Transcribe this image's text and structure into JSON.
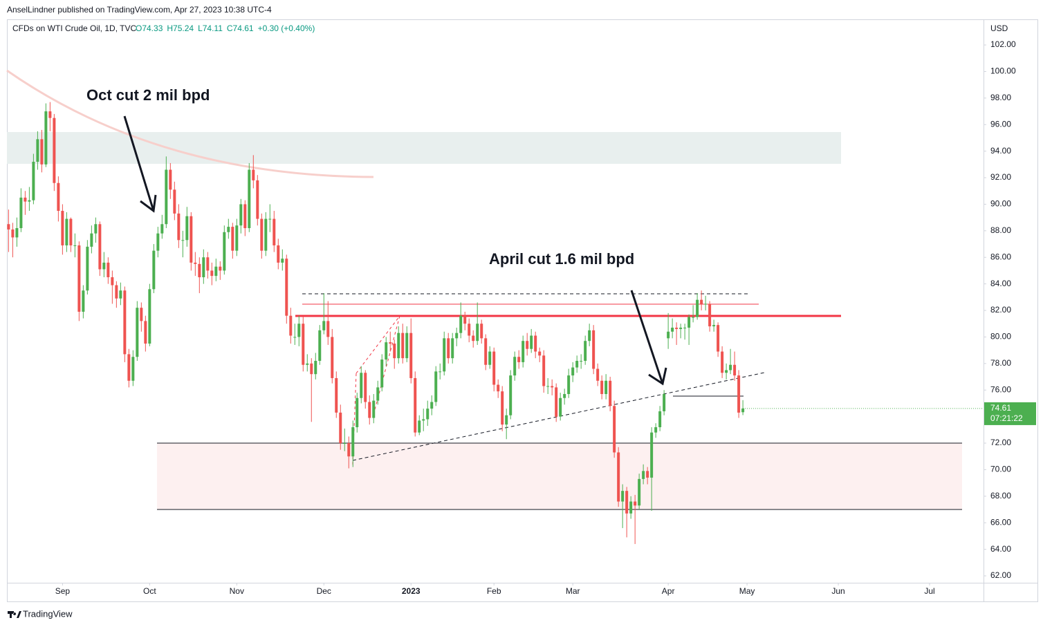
{
  "header": "AnselLindner published on TradingView.com, Apr 27, 2023 10:38 UTC-4",
  "footer": "TradingView",
  "chart_data": {
    "type": "candlestick",
    "title": "CFDs on WTI Crude Oil, 1D, TVC",
    "legend_values": [
      "O74.33",
      "H75.24",
      "L74.11",
      "C74.61",
      "+0.30 (+0.40%)"
    ],
    "annotations": [
      "Oct cut 2 mil bpd",
      "April cut 1.6 mil bpd"
    ],
    "y_axis_label": "USD",
    "last_price": {
      "value": 74.61,
      "label": "74.61"
    },
    "countdown": "07:21:22",
    "up_color": "#4caf50",
    "down_color": "#ef5350",
    "xlim": [
      -0.4,
      235
    ],
    "xticks": [
      {
        "value": 13,
        "label": "Sep"
      },
      {
        "value": 34,
        "label": "Oct"
      },
      {
        "value": 55,
        "label": "Nov"
      },
      {
        "value": 76,
        "label": "Dec"
      },
      {
        "value": 97,
        "label": "2023"
      },
      {
        "value": 117,
        "label": "Feb"
      },
      {
        "value": 136,
        "label": "Mar"
      },
      {
        "value": 159,
        "label": "Apr"
      },
      {
        "value": 178,
        "label": "May"
      },
      {
        "value": 200,
        "label": "Jun"
      },
      {
        "value": 222,
        "label": "Jul"
      }
    ],
    "ylim": [
      61.48,
      103.93
    ],
    "yticks": [
      {
        "value": 62,
        "label": "62.00"
      },
      {
        "value": 64,
        "label": "64.00"
      },
      {
        "value": 66,
        "label": "66.00"
      },
      {
        "value": 68,
        "label": "68.00"
      },
      {
        "value": 70,
        "label": "70.00"
      },
      {
        "value": 72,
        "label": "72.00"
      },
      {
        "value": 74,
        "label": "74.00"
      },
      {
        "value": 76,
        "label": "76.00"
      },
      {
        "value": 78,
        "label": "78.00"
      },
      {
        "value": 80,
        "label": "80.00"
      },
      {
        "value": 82,
        "label": "82.00"
      },
      {
        "value": 84,
        "label": "84.00"
      },
      {
        "value": 86,
        "label": "86.00"
      },
      {
        "value": 88,
        "label": "88.00"
      },
      {
        "value": 90,
        "label": "90.00"
      },
      {
        "value": 92,
        "label": "92.00"
      },
      {
        "value": 94,
        "label": "94.00"
      },
      {
        "value": 96,
        "label": "96.00"
      },
      {
        "value": 98,
        "label": "98.00"
      },
      {
        "value": 100,
        "label": "100.00"
      },
      {
        "value": 102,
        "label": "102.00"
      }
    ],
    "grid": false,
    "ohlc": [
      [
        88.5,
        89.6,
        86.4,
        88.1
      ],
      [
        88.1,
        88.6,
        86.0,
        87.5
      ],
      [
        87.5,
        89.0,
        86.8,
        88.2
      ],
      [
        88.2,
        91.2,
        87.9,
        90.5
      ],
      [
        90.5,
        91.0,
        89.2,
        90.2
      ],
      [
        90.2,
        91.3,
        89.5,
        90.3
      ],
      [
        90.3,
        93.8,
        90.0,
        93.2
      ],
      [
        93.2,
        95.5,
        92.6,
        94.9
      ],
      [
        94.9,
        95.6,
        92.4,
        93.0
      ],
      [
        93.0,
        97.6,
        92.8,
        97.0
      ],
      [
        97.0,
        97.7,
        95.5,
        96.5
      ],
      [
        96.5,
        96.8,
        91.0,
        91.6
      ],
      [
        91.6,
        92.1,
        88.7,
        89.5
      ],
      [
        89.5,
        90.0,
        86.2,
        86.9
      ],
      [
        86.9,
        89.4,
        86.4,
        88.9
      ],
      [
        88.9,
        89.0,
        86.4,
        86.9
      ],
      [
        86.9,
        87.8,
        86.0,
        86.9
      ],
      [
        86.9,
        87.2,
        81.2,
        81.9
      ],
      [
        81.9,
        83.9,
        81.4,
        83.5
      ],
      [
        83.5,
        87.3,
        83.2,
        86.8
      ],
      [
        86.8,
        88.4,
        86.3,
        87.8
      ],
      [
        87.8,
        89.0,
        87.1,
        88.5
      ],
      [
        88.5,
        88.7,
        84.6,
        85.1
      ],
      [
        85.1,
        86.4,
        84.5,
        85.6
      ],
      [
        85.6,
        86.0,
        84.0,
        84.5
      ],
      [
        84.5,
        85.0,
        82.5,
        83.9
      ],
      [
        83.9,
        84.2,
        82.2,
        82.9
      ],
      [
        82.9,
        84.1,
        82.4,
        83.5
      ],
      [
        83.5,
        83.8,
        78.1,
        78.7
      ],
      [
        78.7,
        79.1,
        76.2,
        76.7
      ],
      [
        76.7,
        79.0,
        76.3,
        78.5
      ],
      [
        78.5,
        82.7,
        78.2,
        82.2
      ],
      [
        82.2,
        82.6,
        80.4,
        81.2
      ],
      [
        81.2,
        81.6,
        78.9,
        79.5
      ],
      [
        79.5,
        84.0,
        79.3,
        83.6
      ],
      [
        83.6,
        87.0,
        83.3,
        86.5
      ],
      [
        86.5,
        88.3,
        86.0,
        87.8
      ],
      [
        87.8,
        89.2,
        87.4,
        88.5
      ],
      [
        88.5,
        93.6,
        88.2,
        92.6
      ],
      [
        92.6,
        93.1,
        90.4,
        91.1
      ],
      [
        91.1,
        91.7,
        88.8,
        89.3
      ],
      [
        89.3,
        90.0,
        86.7,
        87.3
      ],
      [
        87.3,
        88.0,
        86.0,
        87.3
      ],
      [
        87.3,
        89.8,
        86.8,
        89.1
      ],
      [
        89.1,
        89.4,
        85.0,
        85.6
      ],
      [
        85.6,
        86.4,
        84.6,
        85.5
      ],
      [
        85.5,
        86.0,
        83.3,
        84.5
      ],
      [
        84.5,
        86.6,
        84.0,
        86.0
      ],
      [
        86.0,
        86.4,
        84.4,
        85.0
      ],
      [
        85.0,
        85.6,
        83.9,
        84.6
      ],
      [
        84.6,
        85.9,
        84.2,
        85.3
      ],
      [
        85.3,
        85.7,
        84.3,
        85.0
      ],
      [
        85.0,
        88.4,
        84.7,
        87.9
      ],
      [
        87.9,
        88.9,
        87.4,
        88.3
      ],
      [
        88.3,
        88.6,
        85.9,
        86.5
      ],
      [
        86.5,
        88.9,
        86.1,
        88.4
      ],
      [
        88.4,
        90.4,
        87.8,
        90.0
      ],
      [
        90.0,
        90.3,
        87.6,
        88.2
      ],
      [
        88.2,
        93.1,
        87.9,
        92.6
      ],
      [
        92.6,
        93.7,
        91.2,
        91.8
      ],
      [
        91.8,
        92.2,
        88.4,
        88.9
      ],
      [
        88.9,
        89.3,
        85.9,
        86.5
      ],
      [
        86.5,
        89.4,
        86.1,
        88.9
      ],
      [
        88.9,
        90.0,
        87.9,
        88.9
      ],
      [
        88.9,
        89.5,
        86.4,
        86.9
      ],
      [
        86.9,
        87.4,
        85.1,
        85.6
      ],
      [
        85.6,
        86.6,
        85.0,
        85.9
      ],
      [
        85.9,
        86.2,
        81.0,
        81.6
      ],
      [
        81.6,
        82.2,
        79.5,
        80.1
      ],
      [
        80.0,
        81.0,
        79.4,
        80.0
      ],
      [
        80.0,
        81.6,
        79.3,
        81.0
      ],
      [
        81.0,
        81.5,
        77.4,
        77.9
      ],
      [
        77.9,
        78.7,
        77.4,
        78.0
      ],
      [
        78.0,
        78.4,
        73.6,
        77.2
      ],
      [
        77.2,
        78.8,
        76.8,
        78.2
      ],
      [
        78.2,
        80.9,
        77.9,
        80.5
      ],
      [
        80.5,
        83.3,
        80.2,
        81.2
      ],
      [
        81.2,
        82.7,
        79.4,
        80.0
      ],
      [
        80.0,
        80.6,
        76.5,
        76.9
      ],
      [
        76.9,
        77.4,
        73.9,
        74.3
      ],
      [
        74.3,
        74.9,
        71.5,
        72.0
      ],
      [
        72.0,
        73.1,
        71.4,
        72.0
      ],
      [
        72.0,
        72.5,
        70.1,
        71.0
      ],
      [
        71.0,
        73.7,
        70.2,
        73.2
      ],
      [
        73.2,
        75.8,
        72.8,
        75.4
      ],
      [
        75.4,
        77.8,
        75.0,
        77.3
      ],
      [
        77.3,
        77.5,
        74.6,
        75.1
      ],
      [
        75.1,
        75.6,
        73.4,
        73.9
      ],
      [
        73.9,
        75.7,
        73.5,
        75.2
      ],
      [
        75.2,
        76.7,
        74.9,
        76.2
      ],
      [
        76.2,
        78.7,
        75.9,
        78.3
      ],
      [
        78.3,
        80.0,
        77.8,
        79.6
      ],
      [
        79.6,
        80.4,
        78.9,
        79.5
      ],
      [
        79.5,
        79.8,
        77.6,
        78.4
      ],
      [
        78.4,
        80.8,
        78.0,
        80.3
      ],
      [
        80.3,
        81.0,
        78.0,
        78.4
      ],
      [
        78.4,
        80.8,
        78.1,
        80.3
      ],
      [
        80.3,
        81.4,
        76.5,
        76.9
      ],
      [
        76.9,
        77.4,
        72.5,
        72.8
      ],
      [
        72.8,
        74.1,
        72.6,
        73.7
      ],
      [
        73.7,
        74.6,
        72.9,
        73.8
      ],
      [
        73.8,
        75.2,
        73.3,
        74.6
      ],
      [
        74.6,
        75.6,
        74.1,
        75.1
      ],
      [
        75.1,
        77.8,
        74.8,
        77.4
      ],
      [
        77.4,
        78.0,
        76.8,
        77.4
      ],
      [
        77.4,
        80.4,
        77.1,
        79.9
      ],
      [
        79.9,
        80.3,
        78.0,
        78.4
      ],
      [
        78.4,
        80.3,
        78.0,
        79.9
      ],
      [
        79.9,
        80.7,
        79.3,
        80.3
      ],
      [
        80.3,
        82.6,
        79.9,
        81.6
      ],
      [
        81.6,
        81.9,
        80.5,
        81.0
      ],
      [
        81.0,
        81.4,
        79.6,
        80.1
      ],
      [
        80.1,
        80.5,
        79.2,
        79.7
      ],
      [
        79.7,
        82.6,
        79.4,
        81.0
      ],
      [
        81.0,
        81.3,
        79.5,
        79.9
      ],
      [
        79.9,
        80.2,
        77.5,
        77.9
      ],
      [
        77.9,
        79.3,
        77.6,
        78.9
      ],
      [
        78.9,
        79.2,
        75.9,
        76.4
      ],
      [
        76.4,
        76.8,
        75.4,
        75.9
      ],
      [
        75.9,
        76.3,
        72.9,
        73.4
      ],
      [
        73.4,
        74.6,
        72.3,
        74.1
      ],
      [
        74.1,
        77.5,
        73.8,
        77.1
      ],
      [
        77.1,
        78.9,
        76.7,
        78.5
      ],
      [
        78.5,
        79.0,
        77.6,
        78.1
      ],
      [
        78.1,
        80.1,
        77.7,
        79.7
      ],
      [
        79.7,
        80.3,
        78.6,
        79.1
      ],
      [
        79.1,
        80.6,
        78.8,
        80.1
      ],
      [
        80.1,
        80.4,
        78.4,
        78.9
      ],
      [
        78.9,
        79.2,
        78.1,
        78.6
      ],
      [
        78.6,
        79.0,
        75.8,
        76.3
      ],
      [
        76.3,
        76.9,
        75.7,
        76.3
      ],
      [
        76.3,
        76.8,
        75.6,
        76.2
      ],
      [
        76.2,
        76.5,
        73.6,
        74.0
      ],
      [
        74.0,
        75.8,
        73.7,
        75.4
      ],
      [
        75.4,
        76.1,
        74.9,
        75.7
      ],
      [
        75.7,
        77.6,
        75.4,
        77.1
      ],
      [
        77.1,
        78.1,
        76.6,
        77.7
      ],
      [
        77.7,
        78.6,
        77.3,
        78.2
      ],
      [
        78.2,
        78.7,
        77.6,
        78.2
      ],
      [
        78.2,
        80.1,
        77.9,
        79.7
      ],
      [
        79.7,
        81.0,
        79.3,
        80.5
      ],
      [
        80.5,
        80.9,
        77.2,
        77.6
      ],
      [
        77.6,
        78.0,
        76.3,
        76.7
      ],
      [
        76.7,
        77.1,
        75.3,
        75.7
      ],
      [
        75.7,
        77.2,
        75.3,
        76.7
      ],
      [
        76.7,
        77.0,
        74.4,
        74.8
      ],
      [
        74.8,
        75.2,
        70.9,
        71.3
      ],
      [
        71.3,
        71.7,
        67.2,
        67.6
      ],
      [
        67.6,
        68.9,
        65.6,
        68.4
      ],
      [
        68.4,
        68.7,
        64.9,
        66.7
      ],
      [
        66.7,
        68.0,
        66.3,
        67.6
      ],
      [
        67.6,
        68.1,
        64.4,
        67.3
      ],
      [
        67.3,
        69.7,
        67.0,
        69.3
      ],
      [
        69.3,
        70.4,
        68.9,
        69.9
      ],
      [
        69.9,
        70.2,
        68.9,
        69.4
      ],
      [
        69.4,
        73.2,
        66.9,
        72.8
      ],
      [
        72.8,
        73.5,
        72.4,
        73.2
      ],
      [
        73.2,
        74.8,
        72.9,
        74.4
      ],
      [
        74.4,
        76.0,
        74.1,
        75.7
      ],
      [
        79.9,
        81.8,
        79.1,
        80.4
      ],
      [
        80.4,
        81.4,
        79.9,
        80.7
      ],
      [
        80.7,
        81.1,
        79.4,
        80.6
      ],
      [
        80.6,
        81.0,
        79.9,
        80.7
      ],
      [
        80.7,
        81.0,
        79.8,
        80.7
      ],
      [
        80.7,
        81.7,
        79.4,
        81.5
      ],
      [
        81.5,
        82.4,
        81.1,
        81.5
      ],
      [
        81.5,
        83.3,
        81.3,
        82.8
      ],
      [
        82.8,
        83.5,
        82.0,
        82.5
      ],
      [
        82.5,
        83.1,
        82.0,
        82.5
      ],
      [
        82.5,
        82.7,
        80.4,
        80.8
      ],
      [
        80.8,
        81.3,
        80.4,
        80.9
      ],
      [
        80.9,
        81.1,
        78.5,
        78.9
      ],
      [
        78.9,
        79.3,
        76.9,
        77.3
      ],
      [
        77.3,
        78.0,
        76.8,
        77.5
      ],
      [
        77.5,
        79.1,
        77.2,
        77.9
      ],
      [
        77.9,
        78.9,
        76.7,
        77.1
      ],
      [
        77.1,
        77.5,
        73.9,
        74.3
      ],
      [
        74.33,
        75.24,
        74.11,
        74.61
      ]
    ]
  }
}
